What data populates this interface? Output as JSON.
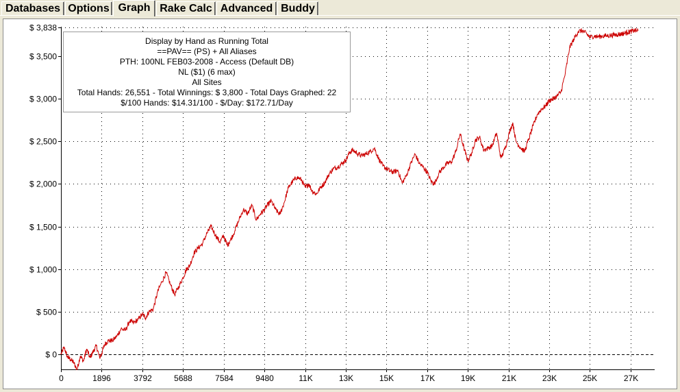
{
  "tabs": [
    {
      "label": "Databases",
      "active": false
    },
    {
      "label": "Options",
      "active": false
    },
    {
      "label": "Graph",
      "active": true
    },
    {
      "label": "Rake Calc",
      "active": false
    },
    {
      "label": "Advanced",
      "active": false
    },
    {
      "label": "Buddy",
      "active": false
    }
  ],
  "info": {
    "line1": "Display by Hand as Running Total",
    "line2": "==PAV== (PS) + All Aliases",
    "line3": "PTH: 100NL FEB03-2008 - Access (Default DB)",
    "line4": "NL ($1) (6 max)",
    "line5": "All Sites",
    "line6": "Total Hands: 26,551 - Total Winnings: $ 3,800 - Total Days Graphed: 22",
    "line7": "$/100 Hands: $14.31/100 - $/Day: $172.71/Day"
  },
  "colors": {
    "line": "#cc0000",
    "grid": "#000000",
    "zero": "#000000"
  },
  "chart_data": {
    "type": "line",
    "xlabel": "",
    "ylabel": "",
    "xlim": [
      0,
      27664
    ],
    "ylim": [
      -200,
      3838
    ],
    "grid": true,
    "x_ticks": [
      {
        "value": 0,
        "label": "0"
      },
      {
        "value": 1896,
        "label": "1896"
      },
      {
        "value": 3792,
        "label": "3792"
      },
      {
        "value": 5688,
        "label": "5688"
      },
      {
        "value": 7584,
        "label": "7584"
      },
      {
        "value": 9480,
        "label": "9480"
      },
      {
        "value": 11376,
        "label": "11K"
      },
      {
        "value": 13272,
        "label": "13K"
      },
      {
        "value": 15168,
        "label": "15K"
      },
      {
        "value": 17064,
        "label": "17K"
      },
      {
        "value": 18960,
        "label": "19K"
      },
      {
        "value": 20856,
        "label": "21K"
      },
      {
        "value": 22752,
        "label": "23K"
      },
      {
        "value": 24648,
        "label": "25K"
      },
      {
        "value": 26544,
        "label": "27K"
      }
    ],
    "y_ticks": [
      {
        "value": 0,
        "label": "$ 0"
      },
      {
        "value": 500,
        "label": "$ 500"
      },
      {
        "value": 1000,
        "label": "$ 1,000"
      },
      {
        "value": 1500,
        "label": "$ 1,500"
      },
      {
        "value": 2000,
        "label": "$ 2,000"
      },
      {
        "value": 2500,
        "label": "$ 2,500"
      },
      {
        "value": 3000,
        "label": "$ 3,000"
      },
      {
        "value": 3500,
        "label": "$ 3,500"
      },
      {
        "value": 3838,
        "label": "$ 3,838"
      }
    ],
    "series": [
      {
        "x": [
          0,
          150,
          300,
          450,
          600,
          750,
          900,
          1050,
          1200,
          1350,
          1500,
          1650,
          1800,
          1896,
          2050,
          2200,
          2400,
          2600,
          2800,
          3000,
          3200,
          3400,
          3600,
          3792,
          3950,
          4100,
          4300,
          4500,
          4700,
          4900,
          5100,
          5300,
          5500,
          5688,
          5850,
          6000,
          6200,
          6400,
          6600,
          6800,
          7000,
          7200,
          7400,
          7584,
          7750,
          7900,
          8100,
          8300,
          8500,
          8700,
          8900,
          9100,
          9300,
          9480,
          9650,
          9800,
          10000,
          10200,
          10400,
          10600,
          10800,
          11000,
          11200,
          11376,
          11550,
          11700,
          11900,
          12100,
          12300,
          12500,
          12700,
          12900,
          13100,
          13272,
          13450,
          13600,
          13800,
          14000,
          14200,
          14400,
          14600,
          14800,
          15000,
          15168,
          15350,
          15500,
          15700,
          15900,
          16100,
          16300,
          16500,
          16700,
          16900,
          17064,
          17250,
          17400,
          17600,
          17800,
          18000,
          18200,
          18400,
          18600,
          18800,
          18960,
          19150,
          19300,
          19500,
          19700,
          19900,
          20100,
          20300,
          20500,
          20700,
          20856,
          21050,
          21200,
          21400,
          21600,
          21800,
          22000,
          22200,
          22400,
          22600,
          22752,
          22950,
          23100,
          23300,
          23500,
          23700,
          23900,
          24100,
          24300,
          24500,
          24648,
          24850,
          25000,
          25200,
          25400,
          25600,
          25800,
          25950,
          26100,
          26250,
          26400,
          26544,
          26700,
          26900
        ],
        "y": [
          0,
          80,
          -30,
          -60,
          -100,
          -180,
          -20,
          -80,
          60,
          -40,
          30,
          100,
          -40,
          10,
          120,
          160,
          160,
          210,
          300,
          280,
          390,
          370,
          410,
          470,
          430,
          500,
          530,
          730,
          850,
          960,
          820,
          700,
          800,
          900,
          1000,
          1040,
          1190,
          1250,
          1300,
          1420,
          1500,
          1400,
          1320,
          1390,
          1280,
          1340,
          1450,
          1580,
          1700,
          1650,
          1750,
          1580,
          1650,
          1700,
          1760,
          1800,
          1700,
          1640,
          1780,
          1960,
          2030,
          2080,
          2050,
          1960,
          2000,
          1920,
          1880,
          1960,
          2020,
          2120,
          2180,
          2200,
          2240,
          2280,
          2370,
          2400,
          2360,
          2330,
          2350,
          2380,
          2420,
          2300,
          2210,
          2180,
          2150,
          2140,
          2160,
          2010,
          2100,
          2240,
          2350,
          2240,
          2190,
          2140,
          2030,
          2000,
          2120,
          2190,
          2240,
          2260,
          2380,
          2590,
          2400,
          2270,
          2370,
          2510,
          2550,
          2400,
          2420,
          2450,
          2600,
          2300,
          2420,
          2570,
          2720,
          2500,
          2430,
          2380,
          2530,
          2680,
          2820,
          2880,
          2920,
          2980,
          3000,
          3030,
          3080,
          3300,
          3600,
          3700,
          3790,
          3800,
          3760,
          3720,
          3738,
          3728,
          3735,
          3740,
          3745,
          3750,
          3755,
          3760,
          3770,
          3780,
          3790,
          3800,
          3800
        ]
      }
    ]
  }
}
